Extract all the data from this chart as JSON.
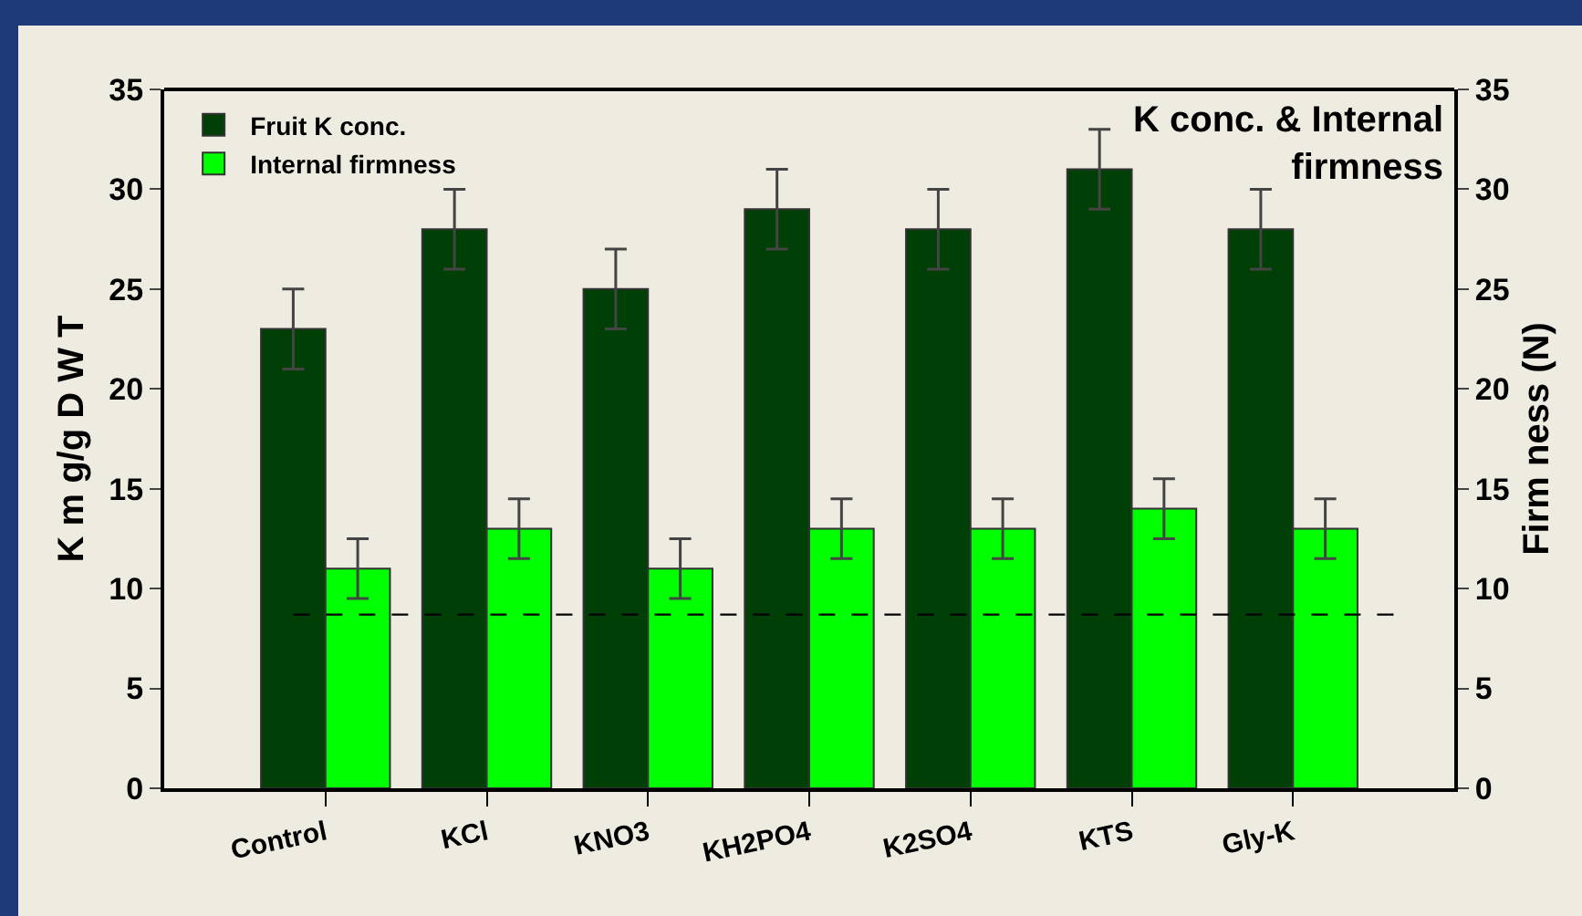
{
  "chart_data": {
    "type": "bar",
    "title": "K conc. & Internal\nfirmness",
    "ylabel": "K m g/g D W T",
    "y2label": "Firm ness (N)",
    "categories": [
      "Control",
      "KCl",
      "KNO3",
      "KH2PO4",
      "K2SO4",
      "KTS",
      "Gly-K"
    ],
    "series": [
      {
        "name": "Fruit K conc.",
        "color": "#003f06",
        "values": [
          23,
          28,
          25,
          29,
          28,
          31,
          28
        ],
        "errors": [
          2,
          2,
          2,
          2,
          2,
          2,
          2
        ]
      },
      {
        "name": "Internal firmness",
        "color": "#00ff00",
        "values": [
          11,
          13,
          11,
          13,
          13,
          14,
          13
        ],
        "errors": [
          1.5,
          1.5,
          1.5,
          1.5,
          1.5,
          1.5,
          1.5
        ],
        "axis": "y2"
      }
    ],
    "ylim": [
      0,
      35
    ],
    "yticks": [
      0,
      5,
      10,
      15,
      20,
      25,
      30,
      35
    ],
    "y2lim": [
      0,
      35
    ],
    "y2ticks": [
      0,
      5,
      10,
      15,
      20,
      25,
      30,
      35
    ],
    "ref_lines": [
      {
        "axis": "y",
        "value": 8.7,
        "color": "#000000",
        "line_style": "dashed"
      }
    ],
    "grid": false,
    "legend": "top left"
  }
}
